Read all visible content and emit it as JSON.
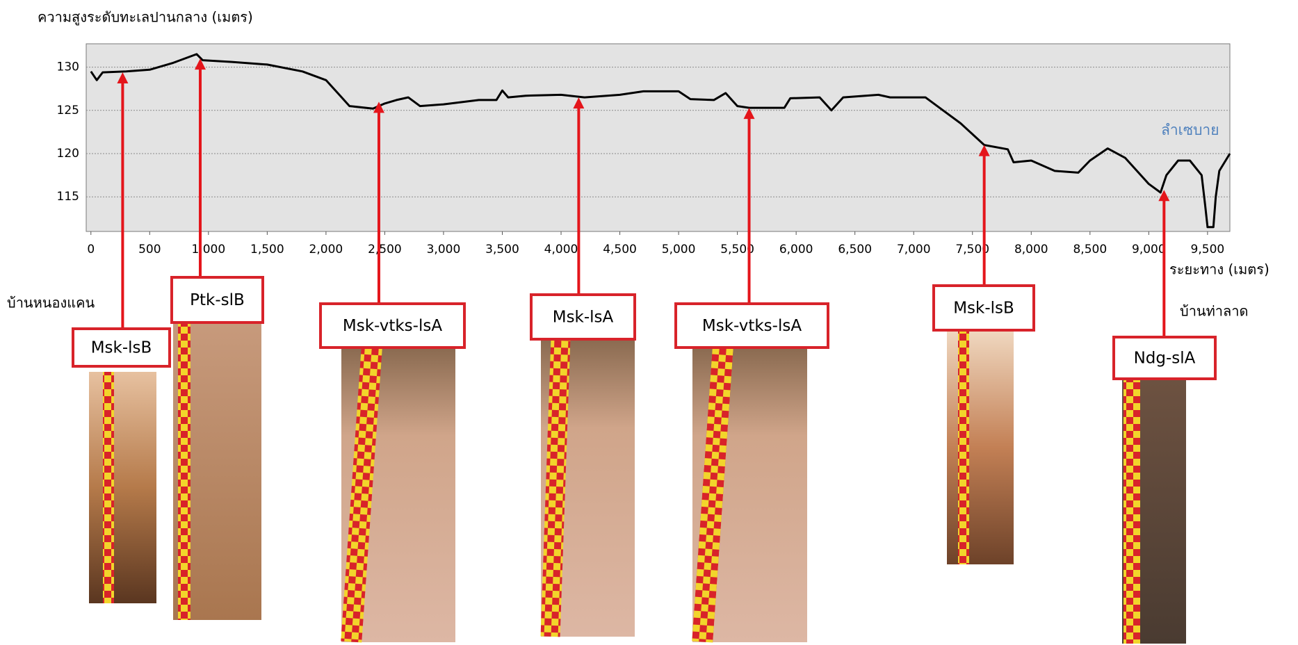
{
  "chart_data": {
    "type": "line",
    "title": "ความสูงระดับทะเลปานกลาง (เมตร)",
    "x_label": "ระยะทาง (เมตร)",
    "color": "#000000",
    "grid": true,
    "xlim": [
      -40,
      9690
    ],
    "ylim": [
      111,
      132.7
    ],
    "xticks": [
      0,
      500,
      {
        "value": 1000,
        "label": "1,000"
      },
      {
        "value": 1500,
        "label": "1,500"
      },
      {
        "value": 2000,
        "label": "2,000"
      },
      {
        "value": 2500,
        "label": "2,500"
      },
      {
        "value": 3000,
        "label": "3,000"
      },
      {
        "value": 3500,
        "label": "3,500"
      },
      {
        "value": 4000,
        "label": "4,000"
      },
      {
        "value": 4500,
        "label": "4,500"
      },
      {
        "value": 5000,
        "label": "5,000"
      },
      {
        "value": 5500,
        "label": "5,500"
      },
      {
        "value": 6000,
        "label": "6,000"
      },
      {
        "value": 6500,
        "label": "6,500"
      },
      {
        "value": 7000,
        "label": "7,000"
      },
      {
        "value": 7500,
        "label": "7,500"
      },
      {
        "value": 8000,
        "label": "8,000"
      },
      {
        "value": 8500,
        "label": "8,500"
      },
      {
        "value": 9000,
        "label": "9,000"
      },
      {
        "value": 9500,
        "label": "9,500"
      }
    ],
    "yticks": [
      115,
      120,
      125,
      130
    ],
    "x": [
      0,
      50,
      100,
      300,
      500,
      700,
      900,
      950,
      1200,
      1500,
      1800,
      2000,
      2100,
      2200,
      2400,
      2500,
      2600,
      2700,
      2800,
      3000,
      3300,
      3450,
      3500,
      3550,
      3700,
      4000,
      4200,
      4500,
      4700,
      5000,
      5100,
      5300,
      5400,
      5500,
      5600,
      5900,
      5950,
      6200,
      6300,
      6400,
      6700,
      6800,
      7100,
      7200,
      7400,
      7600,
      7800,
      7850,
      8000,
      8200,
      8400,
      8500,
      8650,
      8800,
      9000,
      9100,
      9150,
      9250,
      9350,
      9450,
      9480,
      9500,
      9550,
      9570,
      9600,
      9690
    ],
    "values": [
      129.5,
      128.5,
      129.4,
      129.5,
      129.7,
      130.5,
      131.5,
      130.8,
      130.6,
      130.3,
      129.5,
      128.5,
      127,
      125.5,
      125.2,
      125.8,
      126.2,
      126.5,
      125.5,
      125.7,
      126.2,
      126.2,
      127.3,
      126.5,
      126.7,
      126.8,
      126.5,
      126.8,
      127.2,
      127.2,
      126.3,
      126.2,
      127,
      125.5,
      125.3,
      125.3,
      126.4,
      126.5,
      125,
      126.5,
      126.8,
      126.5,
      126.5,
      125.5,
      123.5,
      121,
      120.5,
      119,
      119.2,
      118,
      117.8,
      119.2,
      120.6,
      119.5,
      116.5,
      115.5,
      117.5,
      119.2,
      119.2,
      117.5,
      114,
      111.5,
      111.5,
      115,
      118,
      120
    ],
    "annotations": [
      {
        "text": "Msk-lsB",
        "x": 270,
        "y": 129.4
      },
      {
        "text": "Ptk-slB",
        "x": 930,
        "y": 131
      },
      {
        "text": "Msk-vtks-lsA",
        "x": 2450,
        "y": 126
      },
      {
        "text": "Msk-lsA",
        "x": 4150,
        "y": 126.5
      },
      {
        "text": "Msk-vtks-lsA",
        "x": 5600,
        "y": 125.3
      },
      {
        "text": "Msk-lsB",
        "x": 7600,
        "y": 121
      },
      {
        "text": "Ndg-slA",
        "x": 9130,
        "y": 115.8
      }
    ],
    "place_labels": [
      "บ้านหนองแคน",
      "บ้านท่าลาด",
      "ลำเซบาย"
    ]
  }
}
